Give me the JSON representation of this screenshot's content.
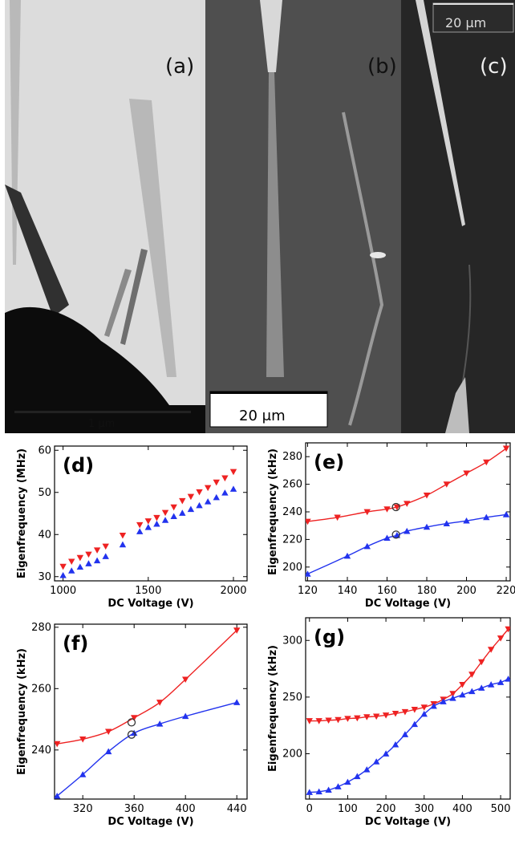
{
  "panels": {
    "a": {
      "label": "(a)",
      "scalebar": "1 μm"
    },
    "b": {
      "label": "(b)",
      "scalebar": "20 μm"
    },
    "c": {
      "label": "(c)",
      "scalebar": "20 μm"
    }
  },
  "chart_data": [
    {
      "id": "d",
      "type": "scatter",
      "panel_label": "(d)",
      "xlabel": "DC Voltage (V)",
      "ylabel": "Eigenfrequency (MHz)",
      "xlim": [
        950,
        2080
      ],
      "ylim": [
        29,
        61
      ],
      "xticks": [
        1000,
        1500,
        2000
      ],
      "yticks": [
        30,
        40,
        50,
        60
      ],
      "series": [
        {
          "color": "#ee2222",
          "marker": "down",
          "line": false,
          "x": [
            1000,
            1050,
            1100,
            1150,
            1200,
            1250,
            1350,
            1450,
            1500,
            1550,
            1600,
            1650,
            1700,
            1750,
            1800,
            1850,
            1900,
            1950,
            2000
          ],
          "y": [
            32.4,
            33.6,
            34.5,
            35.3,
            36.3,
            37.2,
            39.8,
            42.3,
            43.2,
            44.0,
            45.2,
            46.5,
            48.0,
            49.0,
            50.1,
            51.1,
            52.4,
            53.4,
            54.9
          ]
        },
        {
          "color": "#2233ee",
          "marker": "up",
          "line": false,
          "x": [
            1000,
            1050,
            1100,
            1150,
            1200,
            1250,
            1350,
            1450,
            1500,
            1550,
            1600,
            1650,
            1700,
            1750,
            1800,
            1850,
            1900,
            1950,
            2000
          ],
          "y": [
            30.3,
            31.4,
            32.3,
            33.1,
            33.8,
            34.8,
            37.6,
            40.7,
            41.7,
            42.5,
            43.4,
            44.3,
            45.1,
            46.0,
            46.9,
            47.8,
            48.8,
            49.9,
            50.8
          ]
        }
      ]
    },
    {
      "id": "e",
      "type": "line",
      "panel_label": "(e)",
      "xlabel": "DC Voltage (V)",
      "ylabel": "Eigenfrequency (kHz)",
      "xlim": [
        119,
        222
      ],
      "ylim": [
        190,
        290
      ],
      "xticks": [
        120,
        140,
        160,
        180,
        200,
        220
      ],
      "yticks": [
        200,
        220,
        240,
        260,
        280
      ],
      "series": [
        {
          "color": "#ee2222",
          "marker": "down",
          "line": true,
          "x": [
            120,
            135,
            150,
            160,
            165,
            170,
            180,
            190,
            200,
            210,
            220
          ],
          "y": [
            233,
            236,
            240,
            242,
            243.5,
            246,
            252,
            260,
            268,
            276,
            286
          ]
        },
        {
          "color": "#2233ee",
          "marker": "up",
          "line": true,
          "x": [
            120,
            140,
            150,
            160,
            165,
            170,
            180,
            190,
            200,
            210,
            220
          ],
          "y": [
            195,
            208,
            215,
            221,
            223,
            226,
            229,
            231.5,
            233.5,
            236,
            238
          ]
        }
      ],
      "circles": [
        [
          164.5,
          243.5
        ],
        [
          164.5,
          223.5
        ]
      ]
    },
    {
      "id": "f",
      "type": "line",
      "panel_label": "(f)",
      "xlabel": "DC Voltage (V)",
      "ylabel": "Eigenfrequency (kHz)",
      "xlim": [
        298,
        448
      ],
      "ylim": [
        224,
        281
      ],
      "xticks": [
        320,
        360,
        400,
        440
      ],
      "yticks": [
        240,
        260,
        280
      ],
      "series": [
        {
          "color": "#ee2222",
          "marker": "down",
          "line": true,
          "x": [
            300,
            320,
            340,
            360,
            380,
            400,
            440
          ],
          "y": [
            242,
            243.5,
            246,
            250.5,
            255.5,
            263,
            279
          ]
        },
        {
          "color": "#2233ee",
          "marker": "up",
          "line": true,
          "x": [
            300,
            320,
            340,
            360,
            380,
            400,
            440
          ],
          "y": [
            225,
            232,
            239.5,
            245.5,
            248.5,
            251,
            255.5
          ]
        }
      ],
      "circles": [
        [
          358,
          249
        ],
        [
          358,
          245
        ]
      ]
    },
    {
      "id": "g",
      "type": "line",
      "panel_label": "(g)",
      "xlabel": "DC Voltage (V)",
      "ylabel": "Eigenfrequency (kHz)",
      "xlim": [
        -10,
        525
      ],
      "ylim": [
        160,
        320
      ],
      "xticks": [
        0,
        100,
        200,
        300,
        400,
        500
      ],
      "yticks": [
        200,
        250,
        300
      ],
      "series": [
        {
          "color": "#ee2222",
          "marker": "down",
          "line": true,
          "x": [
            0,
            25,
            50,
            75,
            100,
            125,
            150,
            175,
            200,
            225,
            250,
            275,
            300,
            325,
            350,
            375,
            400,
            425,
            450,
            475,
            500,
            520
          ],
          "y": [
            229,
            229,
            229.5,
            230,
            231,
            231.5,
            232.5,
            233,
            234,
            235.5,
            237,
            239,
            241,
            244,
            248,
            253,
            261,
            270,
            281,
            292,
            302,
            310
          ]
        },
        {
          "color": "#2233ee",
          "marker": "up",
          "line": true,
          "x": [
            0,
            25,
            50,
            75,
            100,
            125,
            150,
            175,
            200,
            225,
            250,
            275,
            300,
            325,
            350,
            375,
            400,
            425,
            450,
            475,
            500,
            520
          ],
          "y": [
            166,
            166.5,
            168,
            171,
            175,
            180,
            186,
            193,
            200,
            208,
            217,
            226,
            235,
            242,
            246,
            249,
            252,
            255,
            258,
            261,
            263,
            266
          ]
        }
      ]
    }
  ]
}
